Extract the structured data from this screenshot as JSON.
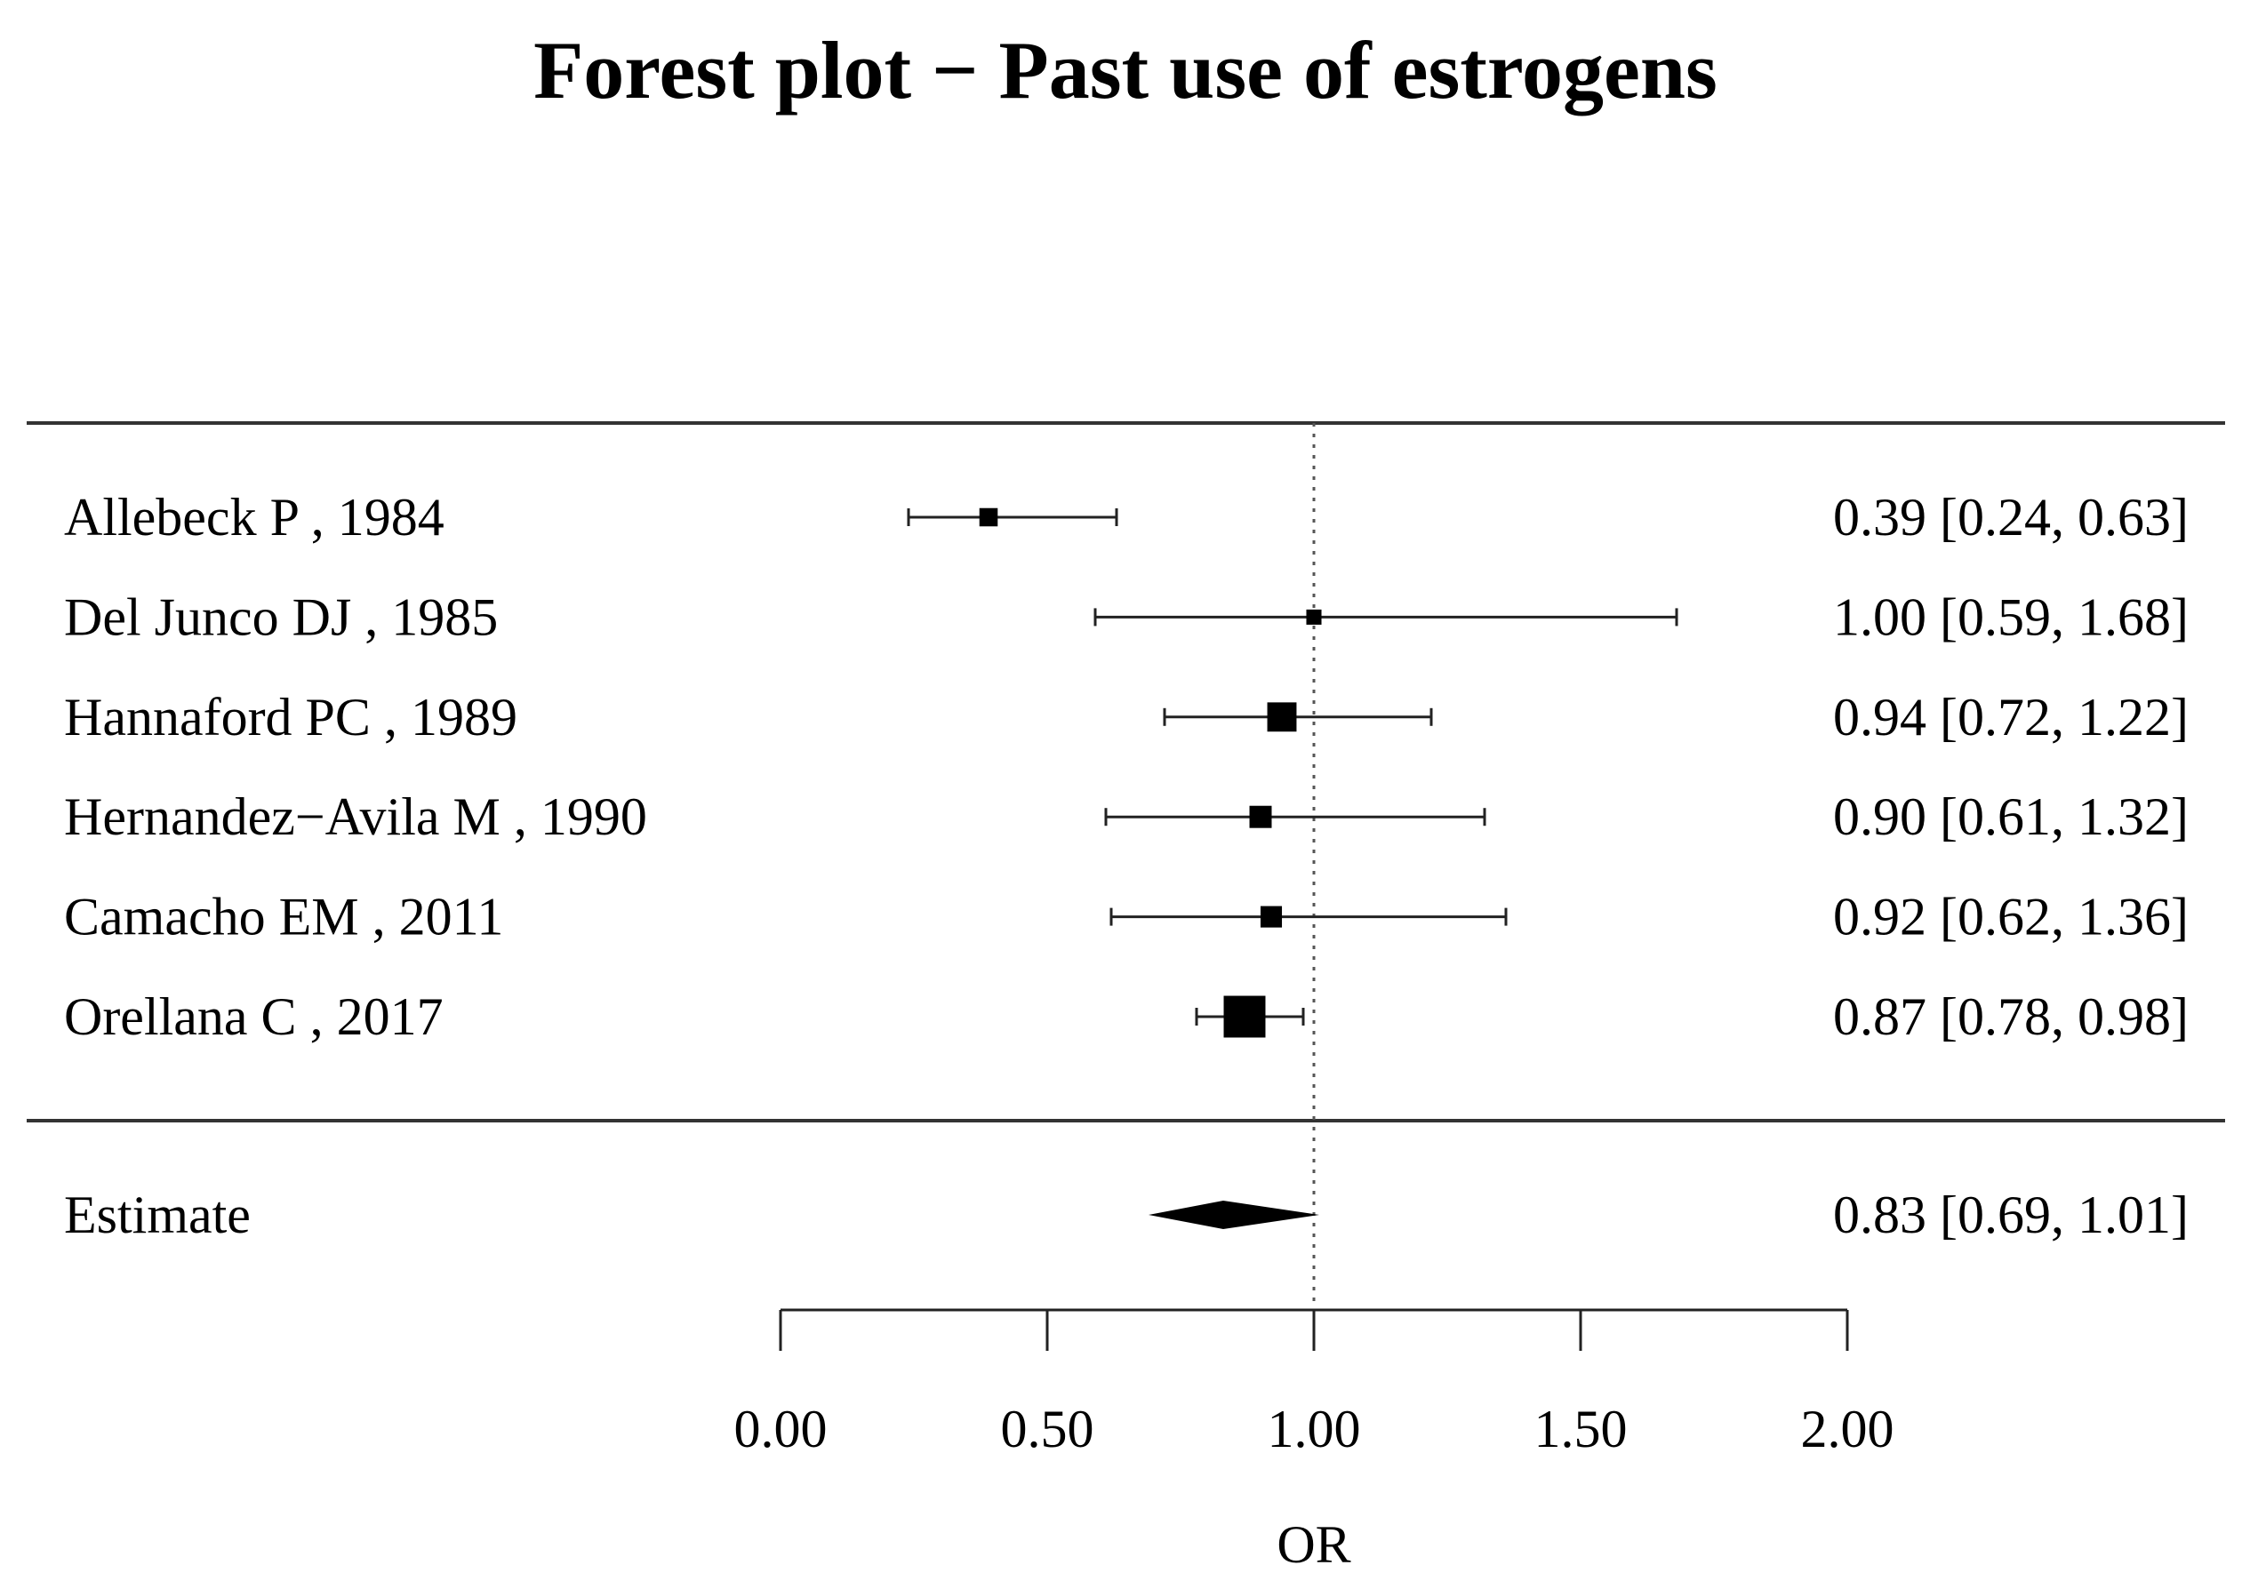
{
  "chart_data": {
    "type": "forest",
    "title": "Forest plot − Past use of estrogens",
    "xlabel": "OR",
    "xlim": [
      0,
      2
    ],
    "ticks": [
      0,
      0.5,
      1,
      1.5,
      2
    ],
    "tick_labels": [
      "0.00",
      "0.50",
      "1.00",
      "1.50",
      "2.00"
    ],
    "reference_line": 1,
    "studies": [
      {
        "label": "Allebeck P , 1984",
        "or": 0.39,
        "lo": 0.24,
        "hi": 0.63,
        "text": "0.39 [0.24, 0.63]",
        "weight": 0.12
      },
      {
        "label": "Del Junco DJ , 1985",
        "or": 1.0,
        "lo": 0.59,
        "hi": 1.68,
        "text": "1.00 [0.59, 1.68]",
        "weight": 0.08
      },
      {
        "label": "Hannaford PC , 1989",
        "or": 0.94,
        "lo": 0.72,
        "hi": 1.22,
        "text": "0.94 [0.72, 1.22]",
        "weight": 0.26
      },
      {
        "label": "Hernandez−Avila M , 1990",
        "or": 0.9,
        "lo": 0.61,
        "hi": 1.32,
        "text": "0.90 [0.61, 1.32]",
        "weight": 0.17
      },
      {
        "label": "Camacho EM , 2011",
        "or": 0.92,
        "lo": 0.62,
        "hi": 1.36,
        "text": "0.92 [0.62, 1.36]",
        "weight": 0.16
      },
      {
        "label": "Orellana C , 2017",
        "or": 0.87,
        "lo": 0.78,
        "hi": 0.98,
        "text": "0.87 [0.78, 0.98]",
        "weight": 0.42
      }
    ],
    "summary": {
      "label": "Estimate",
      "or": 0.83,
      "lo": 0.69,
      "hi": 1.01,
      "text": "0.83 [0.69, 1.01]"
    }
  }
}
